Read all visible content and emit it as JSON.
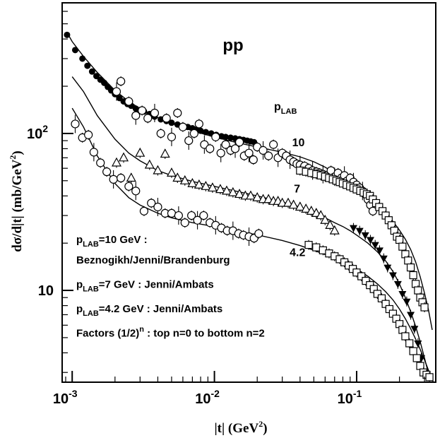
{
  "chart_data": {
    "type": "scatter",
    "title": "pp",
    "xlabel": "|t| (GeV²)",
    "xlabel_parts": {
      "main": "|t| (GeV",
      "sup": "2",
      "end": ")"
    },
    "ylabel": "dσ/d|t| (mb/GeV²)",
    "ylabel_parts": {
      "main": "dσ/d|t|  (mb/GeV",
      "sup": "2",
      "end": ")"
    },
    "xscale": "log",
    "yscale": "log",
    "xlim": [
      0.00085,
      0.36
    ],
    "ylim": [
      2.6,
      680
    ],
    "x_ticks": [
      {
        "value": 0.001,
        "base": "10",
        "exp": "-3"
      },
      {
        "value": 0.01,
        "base": "10",
        "exp": "-2"
      },
      {
        "value": 0.1,
        "base": "10",
        "exp": "-1"
      }
    ],
    "y_ticks": [
      {
        "value": 10,
        "label": "10",
        "exp": ""
      },
      {
        "value": 100,
        "label": "10",
        "exp": "2"
      }
    ],
    "plab_header": {
      "main": "p",
      "sub": "LAB"
    },
    "curve_labels": [
      {
        "text": "10",
        "x": 0.0352,
        "y": 83
      },
      {
        "text": "7",
        "x": 0.0362,
        "y": 42
      },
      {
        "text": "4.2",
        "x": 0.0338,
        "y": 16.5
      }
    ],
    "annotations": [
      {
        "pre": "p",
        "sub": "LAB",
        "post": "=10 GeV :",
        "sup": "",
        "tail": ""
      },
      {
        "pre": "Beznogikh/Jenni/Brandenburg",
        "sub": "",
        "post": "",
        "sup": "",
        "tail": ""
      },
      {
        "pre": "p",
        "sub": "LAB",
        "post": "=7 GeV : Jenni/Ambats",
        "sup": "",
        "tail": ""
      },
      {
        "pre": "p",
        "sub": "LAB",
        "post": "=4.2 GeV : Jenni/Ambats",
        "sup": "",
        "tail": ""
      },
      {
        "pre": "Factors (1/2)",
        "sub": "",
        "post": "",
        "sup": "n",
        "tail": " : top n=0 to bottom n=2"
      }
    ],
    "series": [
      {
        "marker": "filled-circle",
        "x": [
          0.00092,
          0.00105,
          0.00118,
          0.00128,
          0.00138,
          0.00148,
          0.00158,
          0.00168,
          0.00178,
          0.00188,
          0.002,
          0.00215,
          0.0023,
          0.00245,
          0.0026,
          0.0028,
          0.003,
          0.0032,
          0.0035,
          0.0038,
          0.0042,
          0.0046,
          0.005,
          0.0055,
          0.006,
          0.0065,
          0.007,
          0.0075,
          0.008,
          0.0087,
          0.0095,
          0.0103,
          0.0112,
          0.012,
          0.013,
          0.014,
          0.015,
          0.016,
          0.017,
          0.018,
          0.019
        ],
        "y": [
          425,
          340,
          300,
          270,
          248,
          232,
          220,
          210,
          198,
          188,
          178,
          168,
          160,
          154,
          150,
          144,
          141,
          138,
          133,
          128,
          123,
          120,
          117,
          114,
          112,
          110,
          108,
          106,
          104,
          102,
          100,
          98,
          96,
          95,
          94,
          93,
          92,
          91,
          90,
          89,
          88
        ]
      },
      {
        "marker": "open-circle",
        "x": [
          0.00205,
          0.0022,
          0.0025,
          0.0028,
          0.0031,
          0.0034,
          0.0038,
          0.0042,
          0.0046,
          0.005,
          0.0055,
          0.006,
          0.0066,
          0.0072,
          0.0078,
          0.0085,
          0.0093,
          0.0102,
          0.0111,
          0.012,
          0.013,
          0.014,
          0.015,
          0.0162,
          0.0175,
          0.0188,
          0.02,
          0.022,
          0.024,
          0.026,
          0.028,
          0.03,
          0.032,
          0.034,
          0.036,
          0.038,
          0.04,
          0.043,
          0.046,
          0.049,
          0.052,
          0.055,
          0.058,
          0.062,
          0.066,
          0.07,
          0.074,
          0.078,
          0.082,
          0.086,
          0.09,
          0.095,
          0.1,
          0.105,
          0.11,
          0.115,
          0.12,
          0.125,
          0.13
        ],
        "y": [
          185,
          215,
          160,
          130,
          140,
          125,
          135,
          100,
          125,
          95,
          135,
          110,
          90,
          100,
          115,
          85,
          80,
          95,
          75,
          85,
          78,
          80,
          88,
          72,
          75,
          68,
          82,
          78,
          72,
          85,
          70,
          75,
          72,
          68,
          66,
          64,
          63,
          62,
          60,
          58,
          57,
          56,
          55,
          54,
          58,
          53,
          56,
          52,
          54,
          50,
          52,
          49,
          47,
          45,
          43,
          41,
          38,
          35,
          32
        ]
      },
      {
        "marker": "open-triangle",
        "x": [
          0.00205,
          0.0023,
          0.0026,
          0.003,
          0.0035,
          0.004,
          0.0045,
          0.005,
          0.0055,
          0.0062,
          0.007,
          0.0078,
          0.0087,
          0.0097,
          0.011,
          0.0122,
          0.0135,
          0.015,
          0.0165,
          0.018,
          0.02,
          0.022,
          0.024,
          0.026,
          0.028,
          0.03,
          0.033,
          0.036,
          0.04,
          0.044,
          0.048,
          0.052,
          0.056,
          0.06,
          0.065,
          0.07
        ],
        "y": [
          65,
          70,
          52,
          75,
          63,
          58,
          74,
          56,
          52,
          50,
          48,
          47,
          46,
          45,
          44,
          43,
          42,
          41,
          40,
          40,
          39,
          38,
          38,
          37,
          37,
          36,
          36,
          35,
          34,
          33,
          32,
          31,
          30,
          28,
          26,
          24
        ]
      },
      {
        "marker": "filled-triangle-down",
        "x": [
          0.095,
          0.105,
          0.115,
          0.125,
          0.135,
          0.145,
          0.155,
          0.165,
          0.18,
          0.195,
          0.21,
          0.225,
          0.24,
          0.255,
          0.27,
          0.285
        ],
        "y": [
          25,
          24,
          22.5,
          21,
          19.5,
          18,
          16,
          14,
          12.5,
          11,
          9.5,
          8.5,
          7,
          5.7,
          4.6,
          3.7
        ]
      },
      {
        "marker": "open-circle",
        "x": [
          0.00105,
          0.00118,
          0.0013,
          0.00142,
          0.00158,
          0.00175,
          0.00195,
          0.0022,
          0.0025,
          0.0028,
          0.0032,
          0.0036,
          0.004,
          0.0045,
          0.005,
          0.0056,
          0.0062,
          0.0069,
          0.0076,
          0.0084,
          0.0093,
          0.0102,
          0.0112,
          0.0123,
          0.0135,
          0.0148,
          0.016,
          0.0175,
          0.019,
          0.0205
        ],
        "y": [
          115,
          94,
          98,
          76,
          65,
          57,
          51,
          52,
          46,
          43,
          32,
          36,
          34,
          31,
          31,
          30,
          27,
          30,
          28,
          30,
          27,
          26,
          25,
          24,
          24,
          23,
          22.5,
          22,
          21.5,
          23
        ]
      },
      {
        "marker": "open-square",
        "x": [
          0.046,
          0.052,
          0.058,
          0.064,
          0.07,
          0.076,
          0.082,
          0.088,
          0.094,
          0.1,
          0.108,
          0.116,
          0.124,
          0.132,
          0.14,
          0.15,
          0.16,
          0.17,
          0.18,
          0.19,
          0.2,
          0.21,
          0.22,
          0.235,
          0.25,
          0.265,
          0.28,
          0.295,
          0.31,
          0.325
        ],
        "y": [
          19.5,
          18.8,
          18,
          17.2,
          16.5,
          15.8,
          15.1,
          14.4,
          13.7,
          13,
          12.3,
          11.5,
          10.8,
          10.2,
          9.5,
          8.9,
          8.2,
          7.6,
          7.1,
          6.6,
          6.1,
          5.6,
          5.1,
          4.6,
          4.1,
          3.7,
          3.3,
          3,
          2.9,
          2.8
        ]
      },
      {
        "marker": "open-square",
        "x": [
          0.04,
          0.044,
          0.048,
          0.052,
          0.056,
          0.06,
          0.064,
          0.068,
          0.072,
          0.076,
          0.08,
          0.085,
          0.09,
          0.095,
          0.1,
          0.106,
          0.112,
          0.118,
          0.124,
          0.13,
          0.137,
          0.144,
          0.152,
          0.16,
          0.168,
          0.176,
          0.184,
          0.192,
          0.2,
          0.21,
          0.22,
          0.23,
          0.24,
          0.25,
          0.26,
          0.27,
          0.28,
          0.29,
          0.3
        ],
        "y": [
          58,
          57,
          56,
          55,
          54,
          53,
          52,
          51,
          50,
          49,
          48,
          47,
          46,
          45,
          44,
          43,
          42,
          41,
          40,
          38,
          36,
          34,
          32,
          30,
          28,
          26,
          24,
          22,
          21,
          19,
          17,
          15.5,
          14,
          12.5,
          11,
          10,
          9,
          8.4,
          7.8
        ]
      }
    ],
    "curves": [
      {
        "x": [
          0.00092,
          0.001,
          0.0012,
          0.0015,
          0.002,
          0.0025,
          0.003,
          0.004,
          0.005,
          0.007,
          0.01,
          0.014,
          0.02,
          0.03,
          0.04,
          0.05,
          0.06,
          0.07,
          0.08,
          0.09,
          0.1,
          0.11,
          0.12,
          0.13,
          0.14,
          0.15,
          0.16,
          0.18,
          0.2,
          0.22,
          0.24,
          0.26,
          0.28,
          0.3,
          0.32,
          0.34
        ],
        "y": [
          440,
          385,
          310,
          245,
          188,
          160,
          144,
          126,
          116,
          104,
          95,
          88,
          82,
          76,
          71,
          66,
          61,
          56,
          52,
          48,
          45,
          42,
          39.5,
          37,
          35,
          33,
          31,
          27.5,
          24.2,
          21.2,
          18.2,
          15.2,
          12.2,
          9.6,
          7.5,
          5.6
        ]
      },
      {
        "x": [
          0.001,
          0.0012,
          0.0015,
          0.002,
          0.0025,
          0.003,
          0.004,
          0.005,
          0.007,
          0.01,
          0.014,
          0.02,
          0.03,
          0.04,
          0.05,
          0.06,
          0.07,
          0.08,
          0.09,
          0.1,
          0.12,
          0.14,
          0.16,
          0.18,
          0.2,
          0.22,
          0.24,
          0.26,
          0.28,
          0.3,
          0.32,
          0.33
        ],
        "y": [
          230,
          185,
          130,
          92,
          75,
          67,
          58,
          54,
          49.5,
          46,
          43,
          40,
          36.5,
          34,
          31.5,
          29,
          27,
          25.5,
          24,
          22.5,
          20,
          17.6,
          15.4,
          13.2,
          11,
          9,
          7.3,
          5.9,
          4.7,
          3.7,
          2.95,
          2.65
        ]
      },
      {
        "x": [
          0.001,
          0.0012,
          0.0015,
          0.002,
          0.0025,
          0.003,
          0.004,
          0.005,
          0.007,
          0.01,
          0.014,
          0.02,
          0.03,
          0.04,
          0.05,
          0.06,
          0.07,
          0.08,
          0.09,
          0.1,
          0.12,
          0.14,
          0.16,
          0.18,
          0.2,
          0.22,
          0.24,
          0.26,
          0.28,
          0.3,
          0.32,
          0.34,
          0.36
        ],
        "y": [
          145,
          110,
          72,
          48,
          39,
          35,
          31,
          29,
          27,
          25.5,
          24,
          22.6,
          20.8,
          19.3,
          18,
          16.9,
          16,
          15.2,
          14.4,
          13.7,
          12.3,
          11,
          9.8,
          8.7,
          7.6,
          6.6,
          5.7,
          4.9,
          4.2,
          3.6,
          3.1,
          2.7,
          2.4
        ]
      }
    ]
  }
}
